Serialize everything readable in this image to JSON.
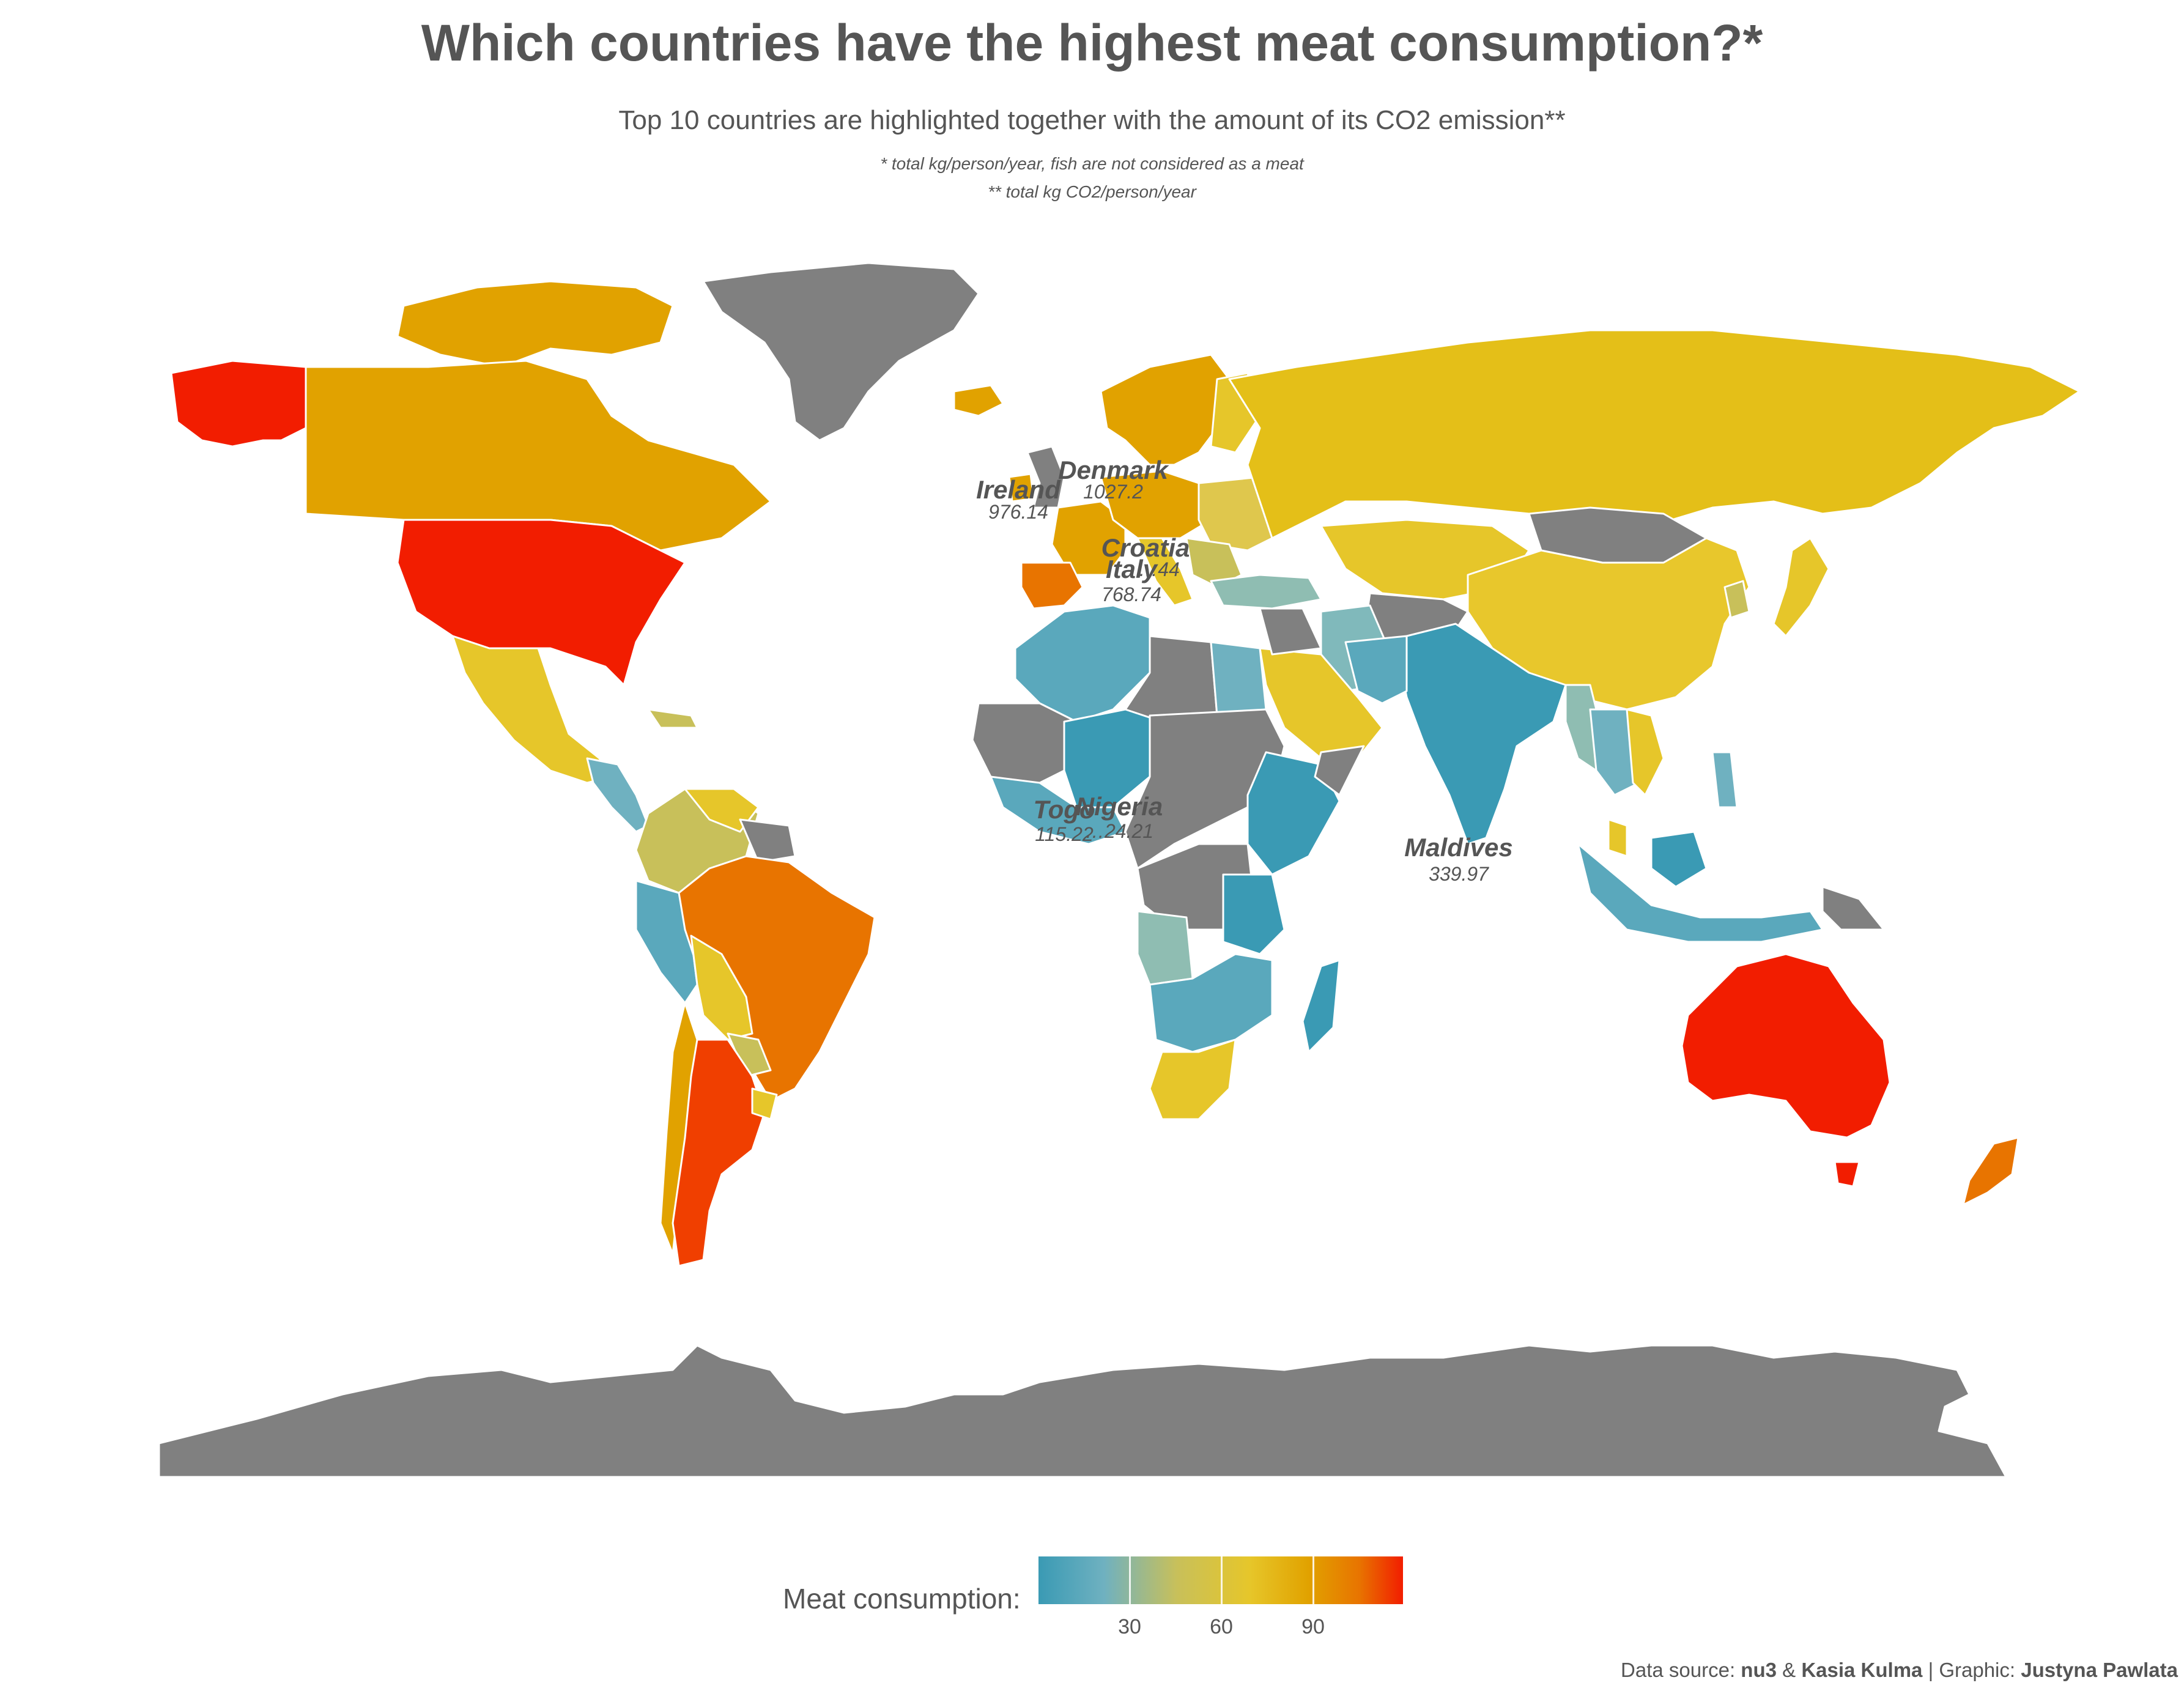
{
  "title": "Which countries have the highest meat consumption?*",
  "subtitle": "Top 10 countries are highlighted together with the amount of its CO2 emission**",
  "notes": [
    "* total kg/person/year, fish are not considered as a meat",
    "** total kg CO2/person/year"
  ],
  "legend": {
    "title": "Meat consumption:",
    "ticks": [
      "30",
      "60",
      "90"
    ]
  },
  "source": {
    "prefix": "Data source: ",
    "src1": "nu3",
    "amp": " & ",
    "src2": "Kasia Kulma",
    "sep": " | Graphic: ",
    "author": "Justyna Pawlata"
  },
  "colors": {
    "no_data": "#808080",
    "low": "#3a9ab4",
    "high": "#f21d00"
  },
  "labels": [
    {
      "name": "Denmark",
      "value": "1027.2"
    },
    {
      "name": "Ireland",
      "value": "976.14"
    },
    {
      "name": "Croatia",
      "value": "…44"
    },
    {
      "name": "Italy",
      "value": "768.74"
    },
    {
      "name": "Togo",
      "value": "115.22"
    },
    {
      "name": "Nigeria",
      "value": "…24.21"
    },
    {
      "name": "Maldives",
      "value": "339.97"
    }
  ]
}
